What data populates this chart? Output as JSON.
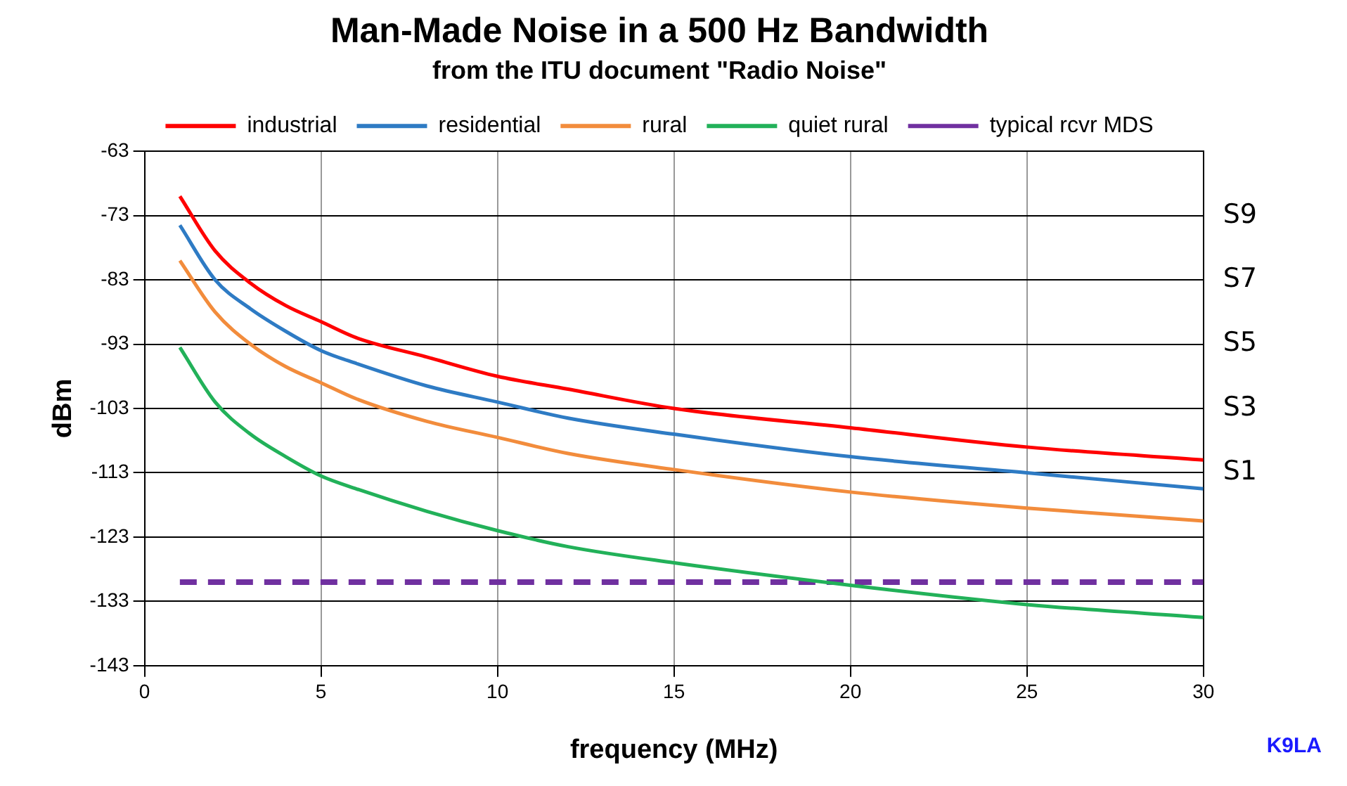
{
  "chart_data": {
    "type": "line",
    "title": "Man-Made Noise in a 500 Hz Bandwidth",
    "subtitle": "from the ITU document \"Radio Noise\"",
    "xlabel": "frequency (MHz)",
    "ylabel": "dBm",
    "x": [
      1,
      2,
      3,
      4,
      5,
      6,
      8,
      10,
      12,
      15,
      20,
      25,
      30
    ],
    "series": [
      {
        "name": "industrial",
        "color": "#ff0000",
        "values": [
          -70,
          -78.5,
          -83.5,
          -87,
          -89.5,
          -92,
          -95,
          -98,
          -100,
          -103,
          -106,
          -109,
          -111
        ]
      },
      {
        "name": "residential",
        "color": "#2e7bc4",
        "values": [
          -74.5,
          -83,
          -87.5,
          -91,
          -94,
          -96,
          -99.5,
          -102,
          -104.5,
          -107,
          -110.5,
          -113,
          -115.5
        ]
      },
      {
        "name": "rural",
        "color": "#f28c3c",
        "values": [
          -80,
          -88,
          -93,
          -96.5,
          -99,
          -101.5,
          -105,
          -107.5,
          -110,
          -112.5,
          -116,
          -118.5,
          -120.5
        ]
      },
      {
        "name": "quiet rural",
        "color": "#22b159",
        "values": [
          -93.5,
          -102,
          -107,
          -110.5,
          -113.5,
          -115.5,
          -119,
          -122,
          -124.5,
          -127,
          -130.5,
          -133.5,
          -135.5
        ]
      },
      {
        "name": "typical rcvr MDS",
        "color": "#7030a0",
        "line_style": "dashed",
        "x": [
          1,
          30
        ],
        "values": [
          -130,
          -130
        ]
      }
    ],
    "xlim": [
      0,
      30
    ],
    "xticks": [
      0,
      5,
      10,
      15,
      20,
      25,
      30
    ],
    "ylim": [
      -143,
      -63
    ],
    "yticks": [
      -143,
      -133,
      -123,
      -113,
      -103,
      -93,
      -83,
      -73,
      -63
    ],
    "grid": true,
    "legend": "top",
    "marker": "none",
    "y2_categories": [
      null,
      "S9",
      "S7",
      "S5",
      "S3",
      "S1",
      null,
      null,
      null
    ],
    "annotations": [
      "K9LA"
    ]
  }
}
